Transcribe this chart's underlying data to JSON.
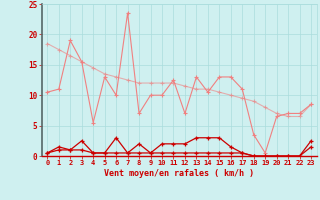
{
  "xlabel": "Vent moyen/en rafales ( km/h )",
  "bg_color": "#cff0f0",
  "grid_color": "#aadddd",
  "x": [
    0,
    1,
    2,
    3,
    4,
    5,
    6,
    7,
    8,
    9,
    10,
    11,
    12,
    13,
    14,
    15,
    16,
    17,
    18,
    19,
    20,
    21,
    22,
    23
  ],
  "line1": [
    10.5,
    11.0,
    19.0,
    15.5,
    5.5,
    13.0,
    10.0,
    23.5,
    7.0,
    10.0,
    10.0,
    12.5,
    7.0,
    13.0,
    10.5,
    13.0,
    13.0,
    11.0,
    3.5,
    0.5,
    6.5,
    7.0,
    7.0,
    8.5
  ],
  "line2": [
    18.5,
    17.5,
    16.5,
    15.5,
    14.5,
    13.5,
    13.0,
    12.5,
    12.0,
    12.0,
    12.0,
    12.0,
    11.5,
    11.0,
    11.0,
    10.5,
    10.0,
    9.5,
    9.0,
    8.0,
    7.0,
    6.5,
    6.5,
    8.5
  ],
  "line3": [
    0.5,
    1.5,
    1.0,
    2.5,
    0.5,
    0.5,
    3.0,
    0.5,
    2.0,
    0.5,
    2.0,
    2.0,
    2.0,
    3.0,
    3.0,
    3.0,
    1.5,
    0.5,
    0.0,
    0.0,
    0.0,
    0.0,
    0.0,
    2.5
  ],
  "line4": [
    0.5,
    1.0,
    1.0,
    1.0,
    0.5,
    0.5,
    0.5,
    0.5,
    0.5,
    0.5,
    0.5,
    0.5,
    0.5,
    0.5,
    0.5,
    0.5,
    0.5,
    0.5,
    0.0,
    0.0,
    0.0,
    0.0,
    0.0,
    1.5
  ],
  "line1_color": "#f08080",
  "line2_color": "#f08080",
  "line3_color": "#cc0000",
  "line4_color": "#cc0000",
  "ylim": [
    0,
    25
  ],
  "xlim": [
    -0.5,
    23.5
  ],
  "yticks": [
    0,
    5,
    10,
    15,
    20,
    25
  ],
  "xticks": [
    0,
    1,
    2,
    3,
    4,
    5,
    6,
    7,
    8,
    9,
    10,
    11,
    12,
    13,
    14,
    15,
    16,
    17,
    18,
    19,
    20,
    21,
    22,
    23
  ]
}
